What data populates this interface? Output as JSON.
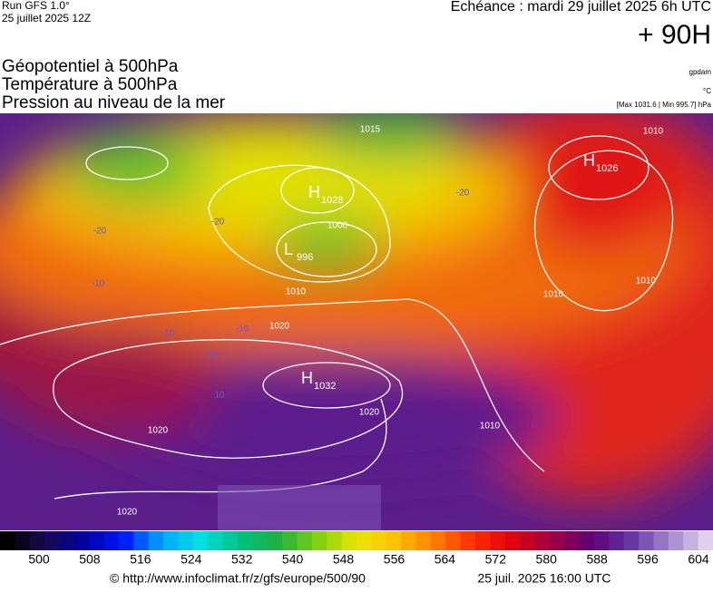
{
  "header": {
    "run": "Run GFS 1.0°",
    "run_date": "25 juillet 2025 12Z",
    "valid": "Echéance : mardi 29 juillet 2025 6h UTC",
    "lead": "+ 90H"
  },
  "fields": [
    "Géopotentiel à 500hPa",
    "Température à 500hPa",
    "Pression au niveau de la mer"
  ],
  "units": [
    "gpdam",
    "°C",
    "[Max 1031.6 | Min 995.7] hPa"
  ],
  "centers": [
    {
      "letter": "H",
      "value": "1028"
    },
    {
      "letter": "L",
      "value": "996"
    },
    {
      "letter": "H",
      "value": "1032"
    },
    {
      "letter": "H",
      "value": "1026"
    }
  ],
  "isobar_labels": [
    "1010",
    "1020",
    "1000",
    "1015",
    "1010",
    "1020",
    "1020",
    "1020",
    "1010",
    "1010",
    "1010"
  ],
  "temp_labels": [
    "-20",
    "-20",
    "-20",
    "-10",
    "-10",
    "-10",
    "-10",
    "10"
  ],
  "colorbar_ticks": [
    500,
    508,
    516,
    524,
    532,
    540,
    548,
    556,
    564,
    572,
    580,
    588,
    596,
    604
  ],
  "footer": {
    "url": "© http://www.infoclimat.fr/z/gfs/europe/500/90",
    "generated": "25 juil. 2025 16:00 UTC"
  }
}
